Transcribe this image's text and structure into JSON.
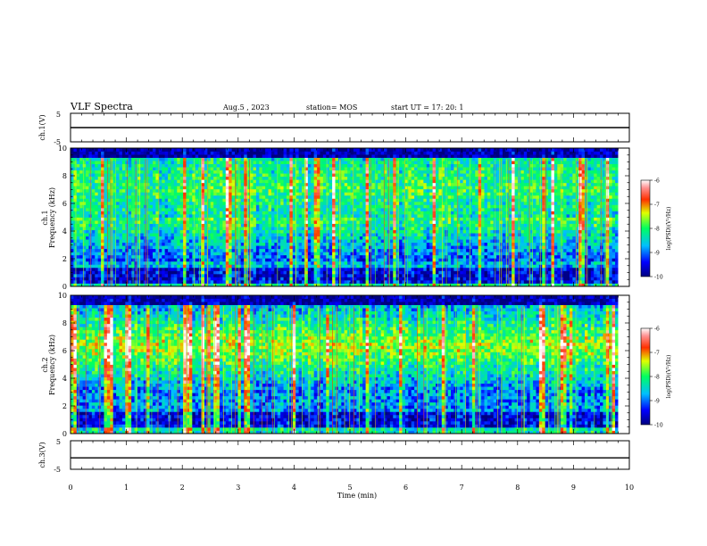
{
  "header": {
    "title": "VLF Spectra",
    "date": "Aug.5 , 2023",
    "station": "station= MOS",
    "start": "start UT = 17: 20: 1"
  },
  "chart_data": [
    {
      "type": "line",
      "name": "ch1-waveform",
      "ylabel": "ch.1(V)",
      "ylim": [
        -5,
        5
      ],
      "yticks": [
        "5",
        "-5"
      ],
      "xlim": [
        0,
        10
      ],
      "baseline": 0
    },
    {
      "type": "heatmap",
      "name": "ch1-spectrogram",
      "ylabel": "ch.1\nFrequency (kHz)",
      "ylim": [
        0,
        10
      ],
      "yticks": [
        "0",
        "2",
        "4",
        "6",
        "8",
        "10"
      ],
      "xlim": [
        0,
        10
      ],
      "data_end_min": 9.8,
      "colorbar": {
        "label": "log(PSD)(V²/Hz)",
        "range": [
          -10,
          -6
        ],
        "ticks": [
          "-6",
          "-7",
          "-8",
          "-9",
          "-10"
        ]
      }
    },
    {
      "type": "heatmap",
      "name": "ch2-spectrogram",
      "ylabel": "ch.2\nFrequency (kHz)",
      "ylim": [
        0,
        10
      ],
      "yticks": [
        "0",
        "2",
        "4",
        "6",
        "8",
        "10"
      ],
      "xlim": [
        0,
        10
      ],
      "data_end_min": 9.8,
      "colorbar": {
        "label": "log(PSD)(V²/Hz)",
        "range": [
          -10,
          -6
        ],
        "ticks": [
          "-6",
          "-7",
          "-8",
          "-9",
          "-10"
        ]
      }
    },
    {
      "type": "line",
      "name": "ch3-waveform",
      "ylabel": "ch.3(V)",
      "ylim": [
        -5,
        5
      ],
      "yticks": [
        "5",
        "-5"
      ],
      "xlim": [
        0,
        10
      ],
      "baseline": -1
    }
  ],
  "xaxis": {
    "label": "Time (min)",
    "ticks": [
      "0",
      "1",
      "2",
      "3",
      "4",
      "5",
      "6",
      "7",
      "8",
      "9",
      "10"
    ]
  }
}
